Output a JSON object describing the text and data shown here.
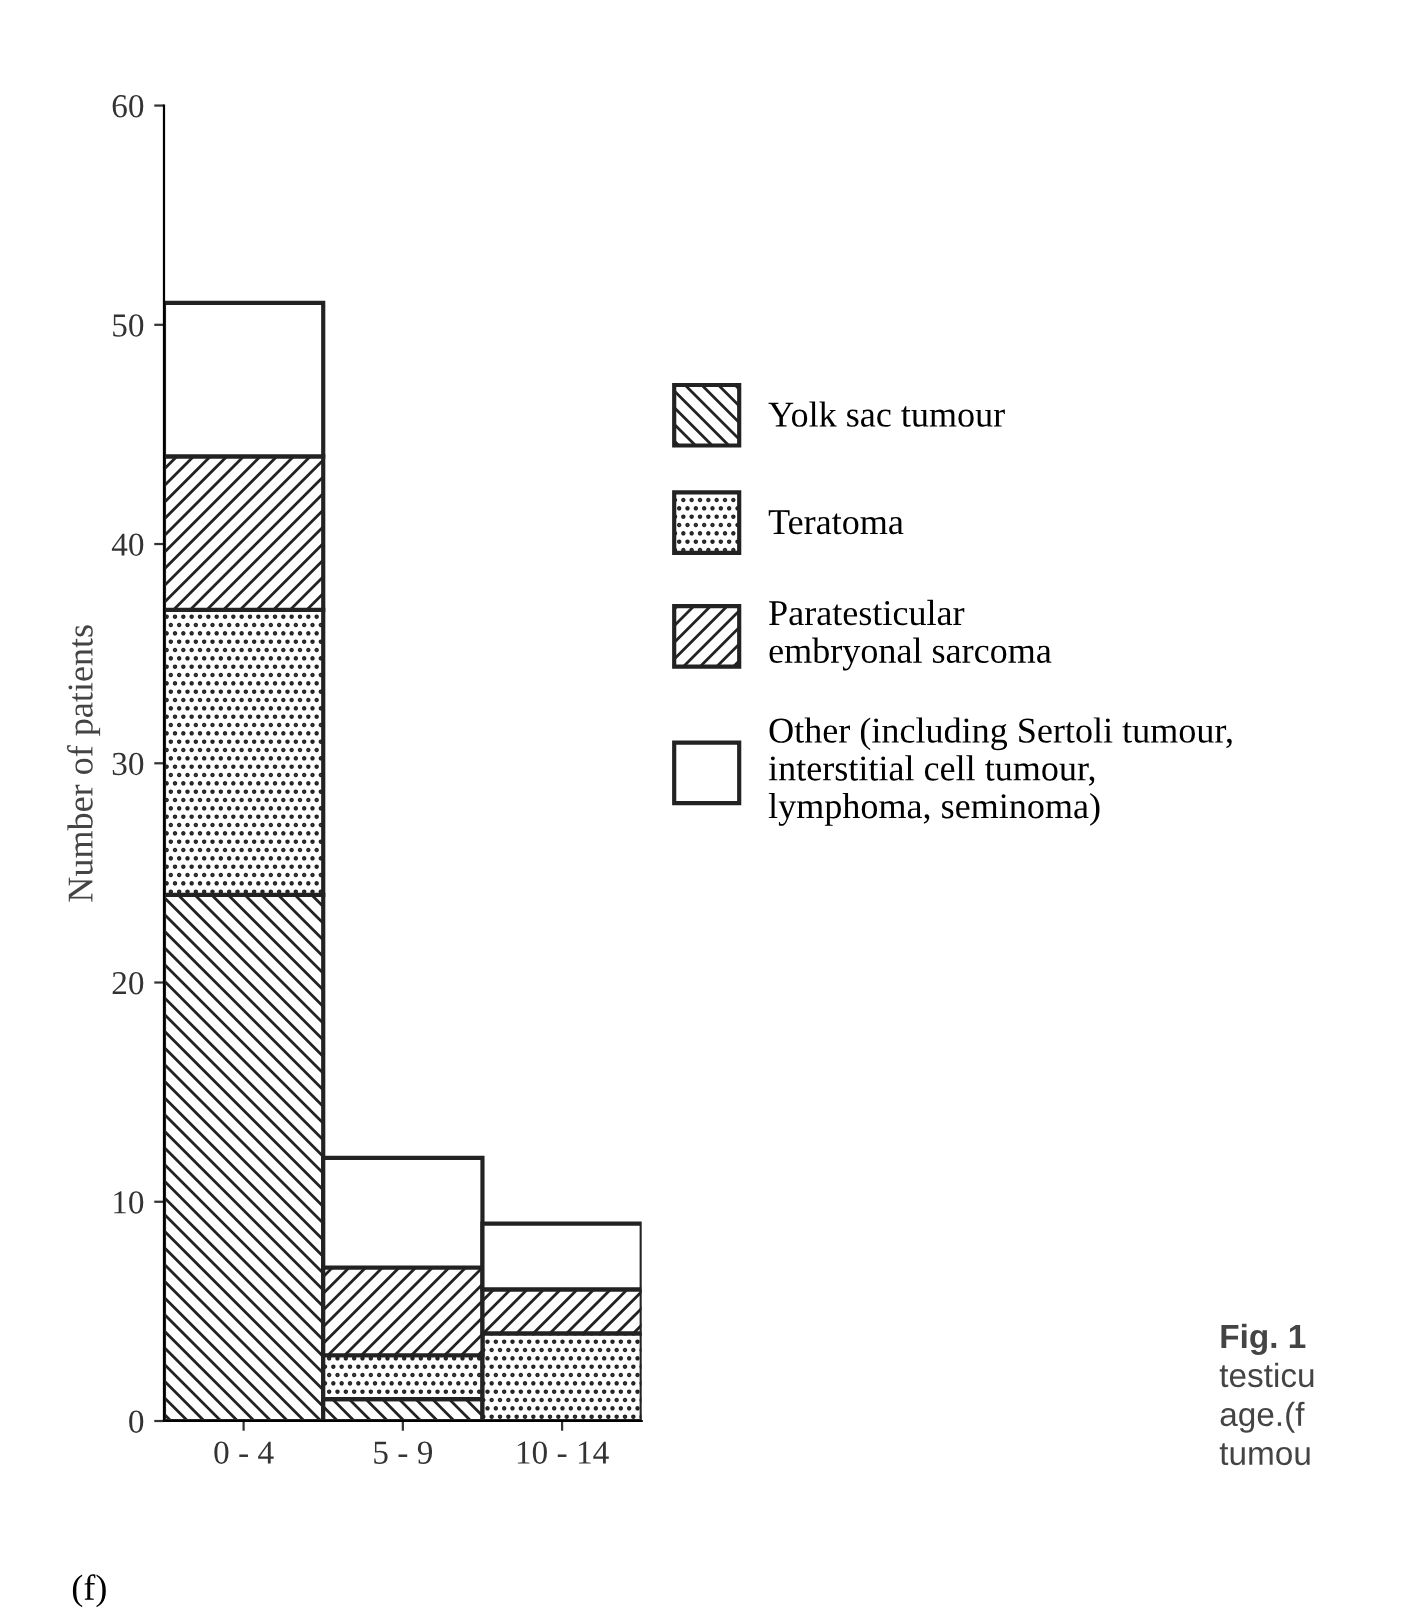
{
  "chart_data": {
    "type": "bar",
    "stacked": true,
    "ylabel": "Number of patients",
    "categories": [
      "0 - 4",
      "5 - 9",
      "10 - 14"
    ],
    "series": [
      {
        "name": "Yolk sac tumour",
        "color": "#222222",
        "values": [
          24,
          1,
          0
        ]
      },
      {
        "name": "Teratoma",
        "color": "#222222",
        "values": [
          13,
          2,
          4
        ]
      },
      {
        "name": "Paratesticular\nembryonal sarcoma",
        "color": "#222222",
        "values": [
          7,
          4,
          2
        ]
      },
      {
        "name": "Other (including Sertoli tumour,\ninterstitial cell tumour,\nlymphoma, seminoma)",
        "color": "#ffffff",
        "values": [
          7,
          5,
          3
        ]
      }
    ],
    "ylim": [
      0,
      60
    ],
    "yticks": [
      0,
      10,
      20,
      30,
      40,
      50,
      60
    ],
    "grid": false,
    "legend": "right",
    "annotations": [
      "(f)",
      "Fig. 1",
      "testicu",
      "age.(f",
      "tumou"
    ]
  }
}
